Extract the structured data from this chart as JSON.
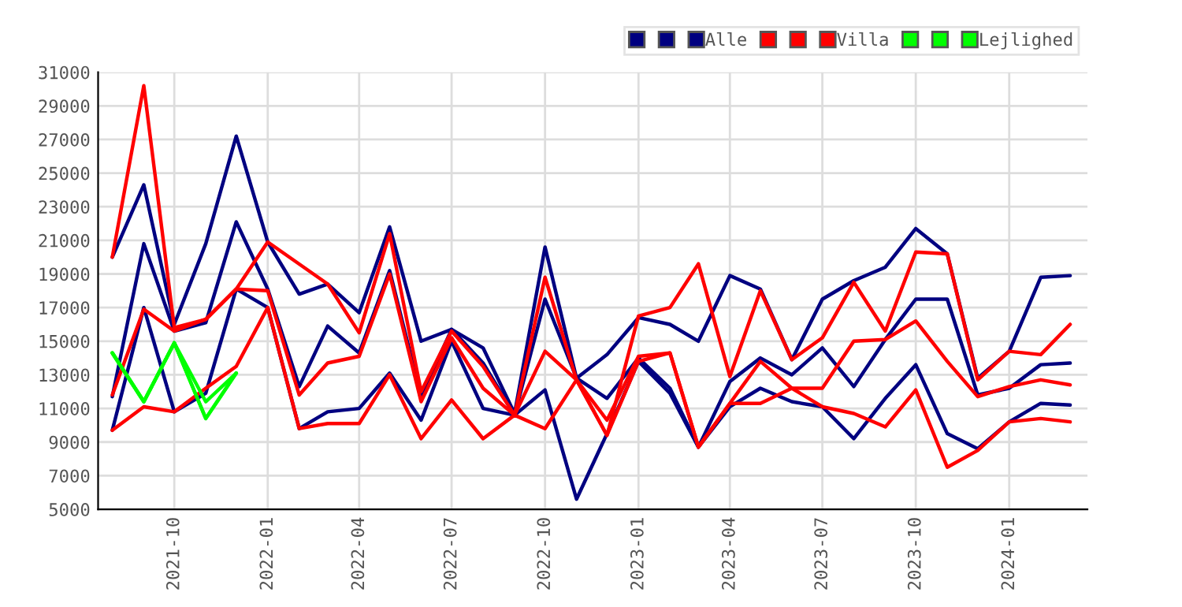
{
  "chart_data": {
    "type": "line",
    "x": [
      "2021-08",
      "2021-09",
      "2021-10",
      "2021-11",
      "2021-12",
      "2022-01",
      "2022-02",
      "2022-03",
      "2022-04",
      "2022-05",
      "2022-06",
      "2022-07",
      "2022-08",
      "2022-09",
      "2022-10",
      "2022-11",
      "2022-12",
      "2023-01",
      "2023-02",
      "2023-03",
      "2023-04",
      "2023-05",
      "2023-06",
      "2023-07",
      "2023-08",
      "2023-09",
      "2023-10",
      "2023-11",
      "2023-12",
      "2024-01",
      "2024-02",
      "2024-03"
    ],
    "series": [
      {
        "color": "#000080",
        "values": [
          20000,
          24300,
          16000,
          20800,
          27200,
          20900,
          17800,
          18400,
          16700,
          21800,
          15000,
          15700,
          14600,
          10700,
          20600,
          12800,
          14200,
          16400,
          16000,
          15000,
          18900,
          18100,
          13900,
          17500,
          18600,
          19400,
          21700,
          20200,
          12800,
          14400,
          18800,
          18900
        ]
      },
      {
        "color": "#000080",
        "values": [
          11700,
          20800,
          15600,
          16100,
          22100,
          18100,
          12300,
          15900,
          14300,
          19200,
          11700,
          15700,
          13700,
          10600,
          17500,
          12800,
          11600,
          14000,
          12200,
          8700,
          12600,
          14000,
          13000,
          14600,
          12300,
          15100,
          17500,
          17500,
          11800,
          12200,
          13600,
          13700
        ]
      },
      {
        "name": "Alle",
        "color": "#000080",
        "values": [
          9700,
          17000,
          10800,
          11900,
          18100,
          17000,
          9800,
          10800,
          11000,
          13100,
          10300,
          15000,
          11000,
          10600,
          12100,
          5600,
          9500,
          13800,
          11900,
          8700,
          11100,
          12200,
          11400,
          11100,
          9200,
          11600,
          13600,
          9500,
          8600,
          10200,
          11300,
          11200
        ]
      },
      {
        "color": "#ff0000",
        "values": [
          20000,
          30200,
          15800,
          16300,
          18100,
          20900,
          null,
          18400,
          15500,
          21400,
          12000,
          15600,
          13500,
          10600,
          18800,
          12700,
          9400,
          16500,
          17000,
          19600,
          12900,
          18000,
          13900,
          15200,
          18500,
          15600,
          20300,
          20200,
          12700,
          14400,
          14200,
          16000
        ]
      },
      {
        "color": "#ff0000",
        "values": [
          11800,
          16900,
          15600,
          16300,
          18100,
          18000,
          11800,
          13700,
          14100,
          19000,
          11400,
          15200,
          12200,
          10600,
          14400,
          12700,
          10300,
          14100,
          14300,
          8700,
          11300,
          13800,
          12200,
          12200,
          15000,
          15100,
          16200,
          13800,
          11700,
          12300,
          12700,
          12400
        ]
      },
      {
        "name": "Villa",
        "color": "#ff0000",
        "values": [
          9700,
          11100,
          10800,
          12200,
          13500,
          17000,
          9800,
          10100,
          10100,
          13000,
          9200,
          11500,
          9200,
          10600,
          9800,
          12700,
          9400,
          13800,
          14300,
          8700,
          11300,
          11300,
          12200,
          11100,
          10700,
          9900,
          12100,
          7500,
          8500,
          10200,
          10400,
          10200
        ]
      },
      {
        "color": "#00ff00",
        "values": [
          14300,
          11400,
          14900,
          11400,
          13100,
          null,
          null,
          null,
          null,
          null,
          null,
          null,
          null,
          null,
          null,
          null,
          null,
          null,
          null,
          null,
          null,
          null,
          null,
          null,
          null,
          null,
          null,
          null,
          null,
          null,
          null,
          null
        ]
      },
      {
        "color": "#00ff00",
        "values": [
          14300,
          11400,
          14900,
          10400,
          13100,
          null,
          null,
          null,
          null,
          null,
          null,
          null,
          null,
          null,
          null,
          null,
          null,
          null,
          null,
          null,
          null,
          null,
          null,
          null,
          null,
          null,
          null,
          null,
          null,
          null,
          null,
          null
        ]
      },
      {
        "name": "Lejlighed",
        "color": "#00ff00",
        "values": [
          14300,
          11400,
          14900,
          10400,
          13100,
          null,
          null,
          null,
          null,
          null,
          null,
          null,
          null,
          null,
          null,
          null,
          null,
          null,
          null,
          null,
          null,
          null,
          null,
          null,
          null,
          null,
          null,
          null,
          null,
          null,
          null,
          null
        ]
      }
    ],
    "xlim": [
      "2021-07-18",
      "2024-03-18"
    ],
    "xticks": [
      {
        "value": "2021-10",
        "label": "2021-10"
      },
      {
        "value": "2022-01",
        "label": "2022-01"
      },
      {
        "value": "2022-04",
        "label": "2022-04"
      },
      {
        "value": "2022-07",
        "label": "2022-07"
      },
      {
        "value": "2022-10",
        "label": "2022-10"
      },
      {
        "value": "2023-01",
        "label": "2023-01"
      },
      {
        "value": "2023-04",
        "label": "2023-04"
      },
      {
        "value": "2023-07",
        "label": "2023-07"
      },
      {
        "value": "2023-10",
        "label": "2023-10"
      },
      {
        "value": "2024-01",
        "label": "2024-01"
      }
    ],
    "ylim": [
      5000,
      31000
    ],
    "yticks": [
      5000,
      7000,
      9000,
      11000,
      13000,
      15000,
      17000,
      19000,
      21000,
      23000,
      25000,
      27000,
      29000,
      31000
    ],
    "grid": true,
    "legend": "top right",
    "marker": "none",
    "line_style": "solid"
  }
}
